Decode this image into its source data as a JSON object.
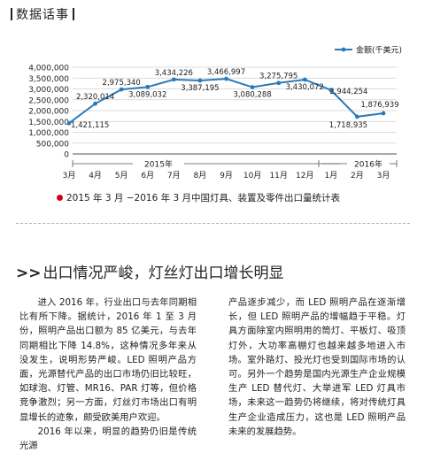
{
  "header": {
    "title": "数据话事"
  },
  "chart_data": {
    "type": "line",
    "legend": "金额(千美元)",
    "categories": [
      "3月",
      "4月",
      "5月",
      "6月",
      "7月",
      "8月",
      "9月",
      "10月",
      "11月",
      "12月",
      "1月",
      "2月",
      "3月"
    ],
    "year_labels": [
      "2015年",
      "2016年"
    ],
    "values": [
      1421115,
      2320014,
      2975340,
      3089032,
      3434226,
      3387195,
      3466997,
      3080288,
      3275795,
      3430072,
      2944254,
      1718935,
      1876939
    ],
    "value_labels": [
      "1,421,115",
      "2,320,014",
      "2,975,340",
      "3,089,032",
      "3,434,226",
      "3,387,195",
      "3,466,997",
      "3,080,288",
      "3,275,795",
      "3,430,072",
      "2,944,254",
      "1,718,935",
      "1,876,939"
    ],
    "ylim": [
      0,
      4000000
    ],
    "yticks": [
      "0",
      "500,000",
      "1,000,000",
      "1,500,000",
      "2,000,000",
      "2,500,000",
      "3,000,000",
      "3,500,000",
      "4,000,000"
    ],
    "grid": true,
    "legend_position": "top-right",
    "colors": {
      "line": "#2a7ab8",
      "grid": "#cfcfcf",
      "axis": "#555555",
      "text": "#222222"
    }
  },
  "caption": "2015 年 3 月 −2016 年 3 月中国灯具、装置及零件出口量统计表",
  "article": {
    "title": "出口情况严峻，灯丝灯出口增长明显",
    "col1": [
      "进入 2016 年，行业出口与去年同期相比有所下降。据统计，2016 年 1 至 3 月份，照明产品出口额为 85 亿美元，与去年同期相比下降 14.8%，这种情况多年来从没发生，说明形势严峻。LED 照明产品方面，光源替代产品的出口市场仍旧比较旺，如球泡、灯管、MR16、PAR 灯等，但价格竞争激烈；另一方面，灯丝灯市场出口有明显增长的迹象，颇受欧美用户欢迎。",
      "2016 年以来，明显的趋势仍旧是传统光源"
    ],
    "col2": [
      "产品逐步减少，而 LED 照明产品在逐渐增长，但 LED 照明产品的增幅趋于平稳。灯具方面除室内照明用的筒灯、平板灯、吸顶灯外，大功率高棚灯也越来越多地进入市场。室外路灯、投光灯也受到国际市场的认可。另外一个趋势是国内光源生产企业规模生产 LED 替代灯、大举进军 LED 灯具市场，未来这一趋势仍将继续，将对传统灯具生产企业造成压力，这也是 LED 照明产品未来的发展趋势。"
    ]
  }
}
